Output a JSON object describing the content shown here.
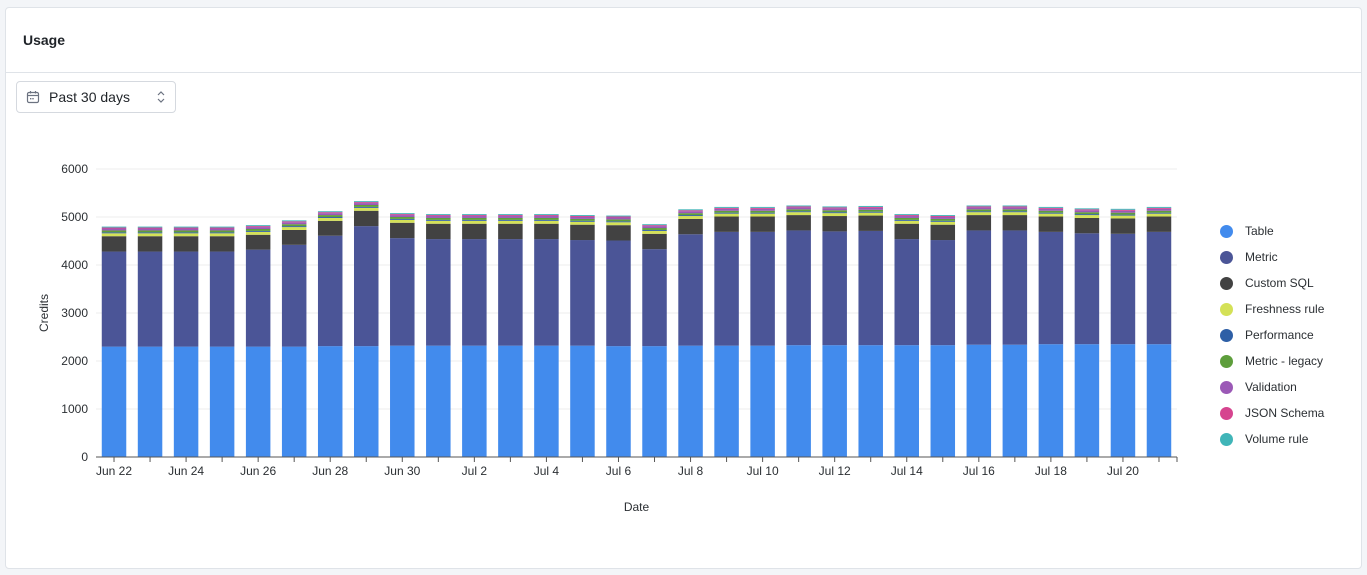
{
  "card": {
    "title": "Usage"
  },
  "range_select": {
    "value": "Past 30 days",
    "icon": "calendar-icon",
    "chevron": "chevron-up-down-icon"
  },
  "chart_data": {
    "type": "bar",
    "stacked": true,
    "xlabel": "Date",
    "ylabel": "Credits",
    "ylim": [
      0,
      6000
    ],
    "yticks": [
      0,
      1000,
      2000,
      3000,
      4000,
      5000,
      6000
    ],
    "grid": true,
    "legend_position": "right",
    "categories": [
      "Jun 22",
      "Jun 23",
      "Jun 24",
      "Jun 25",
      "Jun 26",
      "Jun 27",
      "Jun 28",
      "Jun 29",
      "Jun 30",
      "Jul 1",
      "Jul 2",
      "Jul 3",
      "Jul 4",
      "Jul 5",
      "Jul 6",
      "Jul 7",
      "Jul 8",
      "Jul 9",
      "Jul 10",
      "Jul 11",
      "Jul 12",
      "Jul 13",
      "Jul 14",
      "Jul 15",
      "Jul 16",
      "Jul 17",
      "Jul 18",
      "Jul 19",
      "Jul 20",
      "Jul 21"
    ],
    "xtick_labels": [
      "Jun 22",
      "",
      "Jun 24",
      "",
      "Jun 26",
      "",
      "Jun 28",
      "",
      "Jun 30",
      "",
      "Jul 2",
      "",
      "Jul 4",
      "",
      "Jul 6",
      "",
      "Jul 8",
      "",
      "Jul 10",
      "",
      "Jul 12",
      "",
      "Jul 14",
      "",
      "Jul 16",
      "",
      "Jul 18",
      "",
      "Jul 20",
      ""
    ],
    "series": [
      {
        "name": "Table",
        "color": "#428bed",
        "values": [
          2300,
          2300,
          2300,
          2300,
          2300,
          2300,
          2310,
          2310,
          2320,
          2320,
          2320,
          2320,
          2320,
          2320,
          2310,
          2310,
          2320,
          2320,
          2320,
          2330,
          2330,
          2330,
          2330,
          2330,
          2340,
          2340,
          2350,
          2350,
          2350,
          2350
        ]
      },
      {
        "name": "Metric",
        "color": "#4b5597",
        "values": [
          1980,
          1980,
          1980,
          1980,
          2020,
          2120,
          2300,
          2500,
          2240,
          2220,
          2220,
          2220,
          2220,
          2200,
          2200,
          2020,
          2320,
          2370,
          2370,
          2390,
          2370,
          2380,
          2210,
          2190,
          2380,
          2380,
          2340,
          2310,
          2300,
          2340
        ]
      },
      {
        "name": "Custom SQL",
        "color": "#424242",
        "values": [
          320,
          320,
          320,
          320,
          310,
          310,
          310,
          320,
          320,
          320,
          320,
          320,
          320,
          320,
          320,
          320,
          320,
          320,
          320,
          320,
          320,
          320,
          320,
          320,
          320,
          320,
          320,
          320,
          320,
          320
        ]
      },
      {
        "name": "Freshness rule",
        "color": "#d4e157",
        "values": [
          60,
          60,
          60,
          60,
          60,
          60,
          60,
          60,
          60,
          60,
          60,
          60,
          60,
          60,
          60,
          60,
          60,
          60,
          60,
          60,
          60,
          60,
          60,
          60,
          60,
          60,
          60,
          60,
          60,
          60
        ]
      },
      {
        "name": "Performance",
        "color": "#2e5fa6",
        "values": [
          20,
          20,
          20,
          20,
          20,
          20,
          20,
          20,
          20,
          20,
          20,
          20,
          20,
          20,
          20,
          20,
          20,
          20,
          20,
          20,
          20,
          20,
          20,
          20,
          20,
          20,
          20,
          20,
          20,
          20
        ]
      },
      {
        "name": "Metric - legacy",
        "color": "#5e9e3c",
        "values": [
          40,
          40,
          40,
          40,
          40,
          40,
          40,
          40,
          40,
          40,
          40,
          40,
          40,
          40,
          40,
          40,
          40,
          40,
          40,
          40,
          40,
          40,
          40,
          40,
          40,
          40,
          40,
          40,
          40,
          40
        ]
      },
      {
        "name": "Validation",
        "color": "#9b59b6",
        "values": [
          40,
          40,
          40,
          40,
          40,
          40,
          40,
          40,
          40,
          40,
          40,
          40,
          40,
          40,
          40,
          40,
          40,
          40,
          40,
          40,
          40,
          40,
          40,
          40,
          40,
          40,
          40,
          40,
          40,
          40
        ]
      },
      {
        "name": "JSON Schema",
        "color": "#d6448f",
        "values": [
          20,
          20,
          20,
          20,
          20,
          20,
          20,
          20,
          20,
          20,
          20,
          20,
          20,
          20,
          20,
          20,
          20,
          20,
          20,
          20,
          20,
          20,
          20,
          20,
          20,
          20,
          20,
          20,
          20,
          20
        ]
      },
      {
        "name": "Volume rule",
        "color": "#40b5b8",
        "values": [
          20,
          20,
          20,
          20,
          20,
          20,
          20,
          20,
          20,
          20,
          20,
          20,
          20,
          20,
          20,
          20,
          20,
          20,
          20,
          20,
          20,
          20,
          20,
          20,
          20,
          20,
          20,
          20,
          20,
          20
        ]
      }
    ]
  }
}
